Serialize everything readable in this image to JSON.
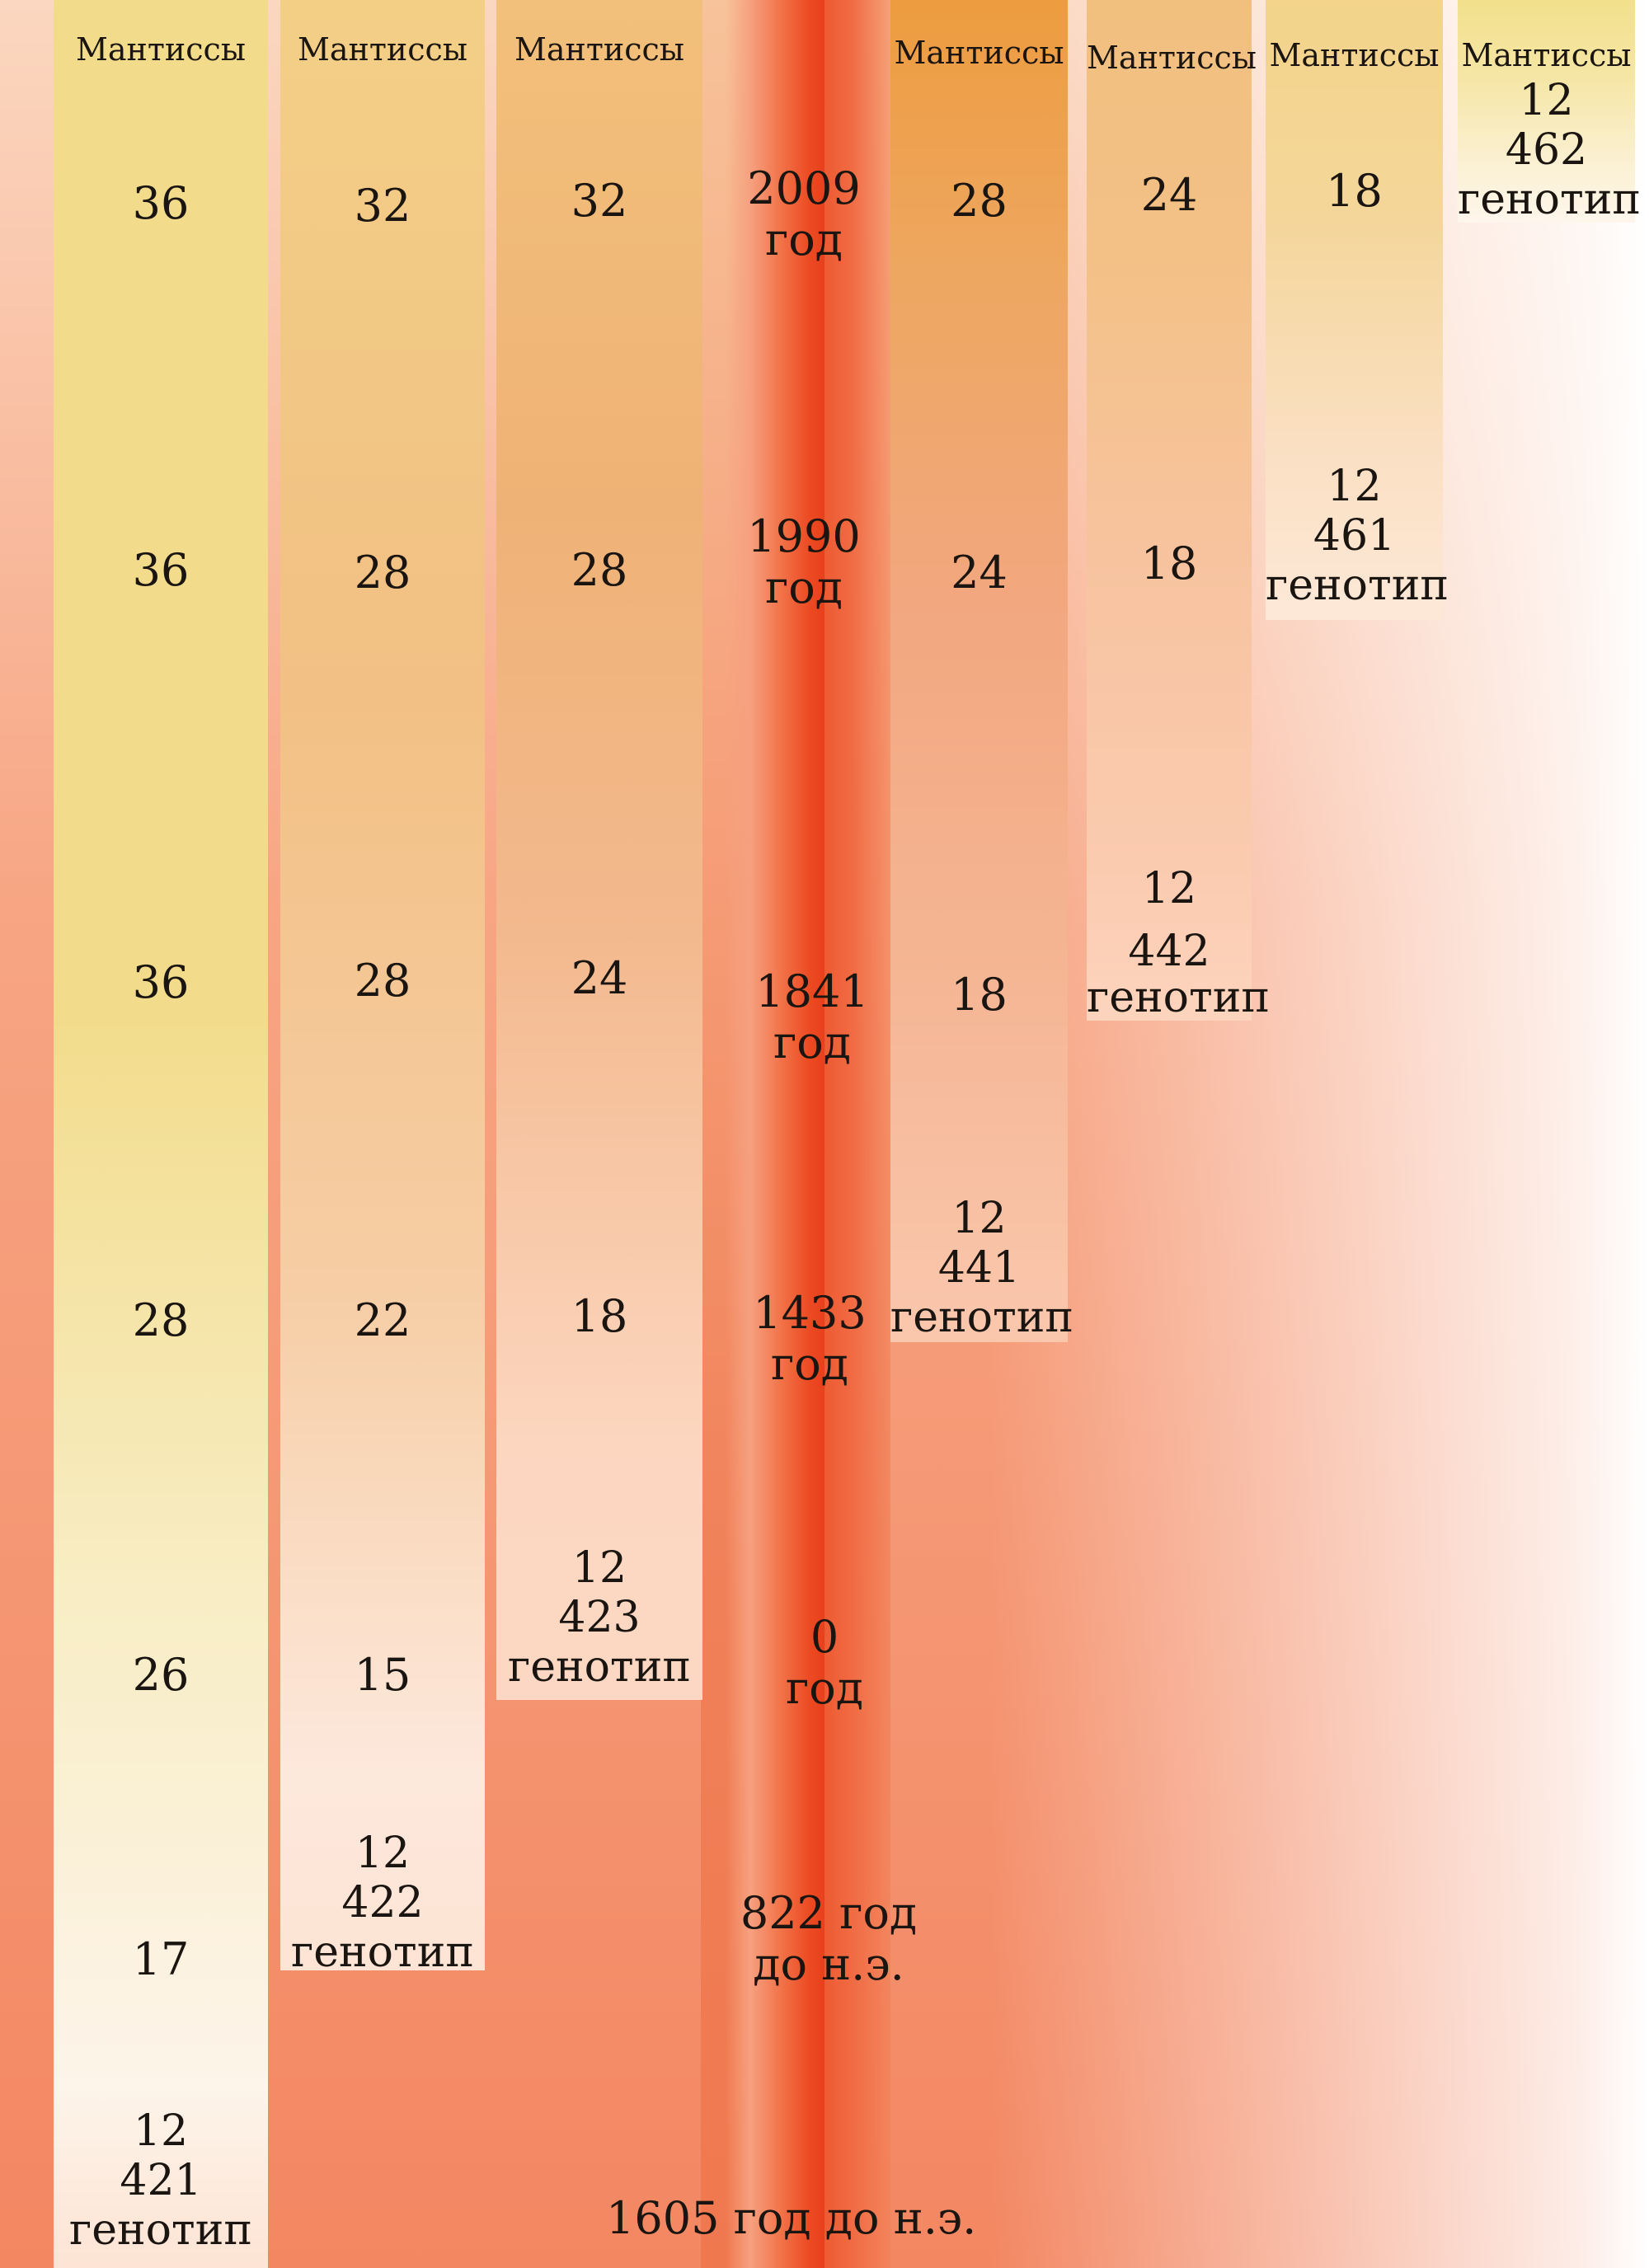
{
  "columns": [
    {
      "header": "Мантиссы",
      "values": [
        "36",
        "36",
        "36",
        "28",
        "26",
        "17"
      ],
      "genotype": [
        "12",
        "421",
        "генотип"
      ]
    },
    {
      "header": "Мантиссы",
      "values": [
        "32",
        "28",
        "28",
        "22",
        "15"
      ],
      "genotype": [
        "12",
        "422",
        "генотип"
      ]
    },
    {
      "header": "Мантиссы",
      "values": [
        "32",
        "28",
        "24",
        "18"
      ],
      "genotype": [
        "12",
        "423",
        "генотип"
      ]
    },
    {
      "header": "Мантиссы",
      "values": [
        "28",
        "24",
        "18"
      ],
      "genotype": [
        "12",
        "441",
        "генотип"
      ]
    },
    {
      "header": "Мантиссы",
      "values": [
        "24",
        "18"
      ],
      "genotype": [
        "12",
        "442",
        "генотип"
      ]
    },
    {
      "header": "Мантиссы",
      "values": [
        "18"
      ],
      "genotype": [
        "12",
        "461",
        "генотип"
      ]
    },
    {
      "header": "Мантиссы",
      "values": [],
      "genotype": [
        "12",
        "462",
        "генотип"
      ]
    }
  ],
  "timeline": [
    [
      "2009",
      "год"
    ],
    [
      "1990",
      "год"
    ],
    [
      "1841",
      "год"
    ],
    [
      "1433",
      "год"
    ],
    [
      "0",
      "год"
    ],
    [
      "822 год",
      "до н.э."
    ],
    [
      "1605 год до н.э."
    ]
  ]
}
